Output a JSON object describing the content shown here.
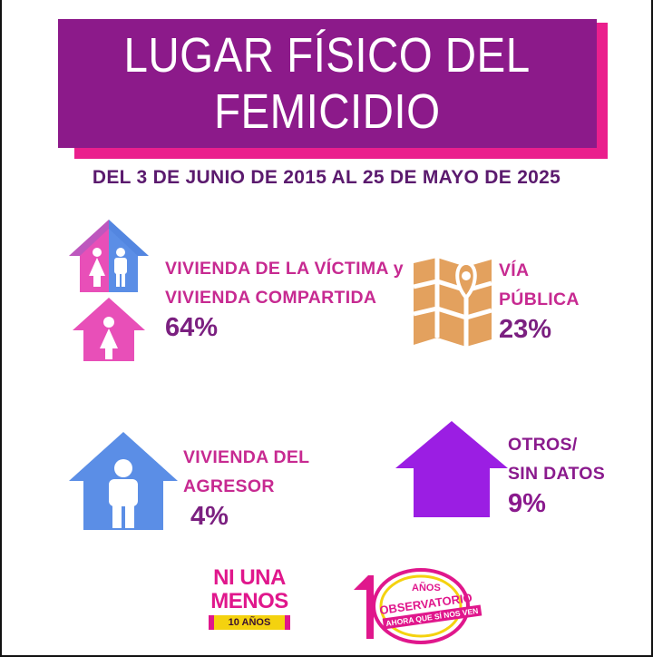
{
  "title": {
    "line1": "LUGAR FÍSICO DEL",
    "line2": "FEMICIDIO"
  },
  "date_range": "DEL 3 DE JUNIO DE 2015 AL 25 DE MAYO DE 2025",
  "categories": [
    {
      "label_line1": "VIVIENDA DE LA VÍCTIMA y",
      "label_line2": "VIVIENDA COMPARTIDA",
      "percent": "64%",
      "icon": "house-couple-icon"
    },
    {
      "label_line1": "VÍA",
      "label_line2": "PÚBLICA",
      "percent": "23%",
      "icon": "map-pin-icon"
    },
    {
      "label_line1": "VIVIENDA DEL",
      "label_line2": "AGRESOR",
      "percent": "4%",
      "icon": "house-person-icon"
    },
    {
      "label_line1": "OTROS/",
      "label_line2": "SIN DATOS",
      "percent": "9%",
      "icon": "house-icon"
    }
  ],
  "logos": {
    "ni_una_menos": {
      "line1": "NI UNA",
      "line2": "MENOS",
      "years": "10 AÑOS"
    },
    "observatorio": {
      "anos": "AÑOS",
      "name": "OBSERVATORIO",
      "tagline": "AHORA QUE SÍ NOS VEN"
    }
  },
  "colors": {
    "banner": "#8c1a8a",
    "banner_shadow": "#ea1f8d",
    "pink": "#e84fb8",
    "blue": "#5b8ee6",
    "orange": "#e3a15e",
    "purple_house": "#9b1ee3",
    "text_pink": "#c72a91",
    "text_purple": "#7b2080"
  }
}
